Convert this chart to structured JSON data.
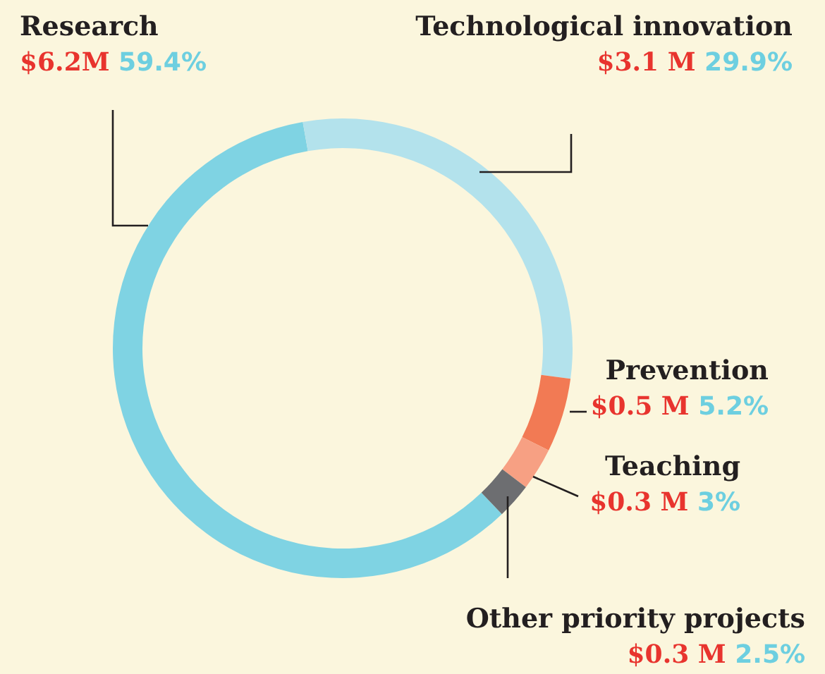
{
  "chart_data": {
    "type": "donut",
    "categories": [
      "Research",
      "Technological innovation",
      "Prevention",
      "Teaching",
      "Other priority projects"
    ],
    "values": [
      59.4,
      29.9,
      5.2,
      3,
      2.5
    ],
    "colors": [
      "#7fd3e3",
      "#b3e2ec",
      "#f27a54",
      "#f7a083",
      "#6d6e71"
    ],
    "value_labels": [
      "59.4%",
      "29.9%",
      "5.2%",
      "3%",
      "2.5%"
    ],
    "annotations": [
      "$6.2M",
      "$3.1 M",
      "$0.5 M",
      "$0.3 M",
      "$0.3 M"
    ],
    "legend": false
  }
}
